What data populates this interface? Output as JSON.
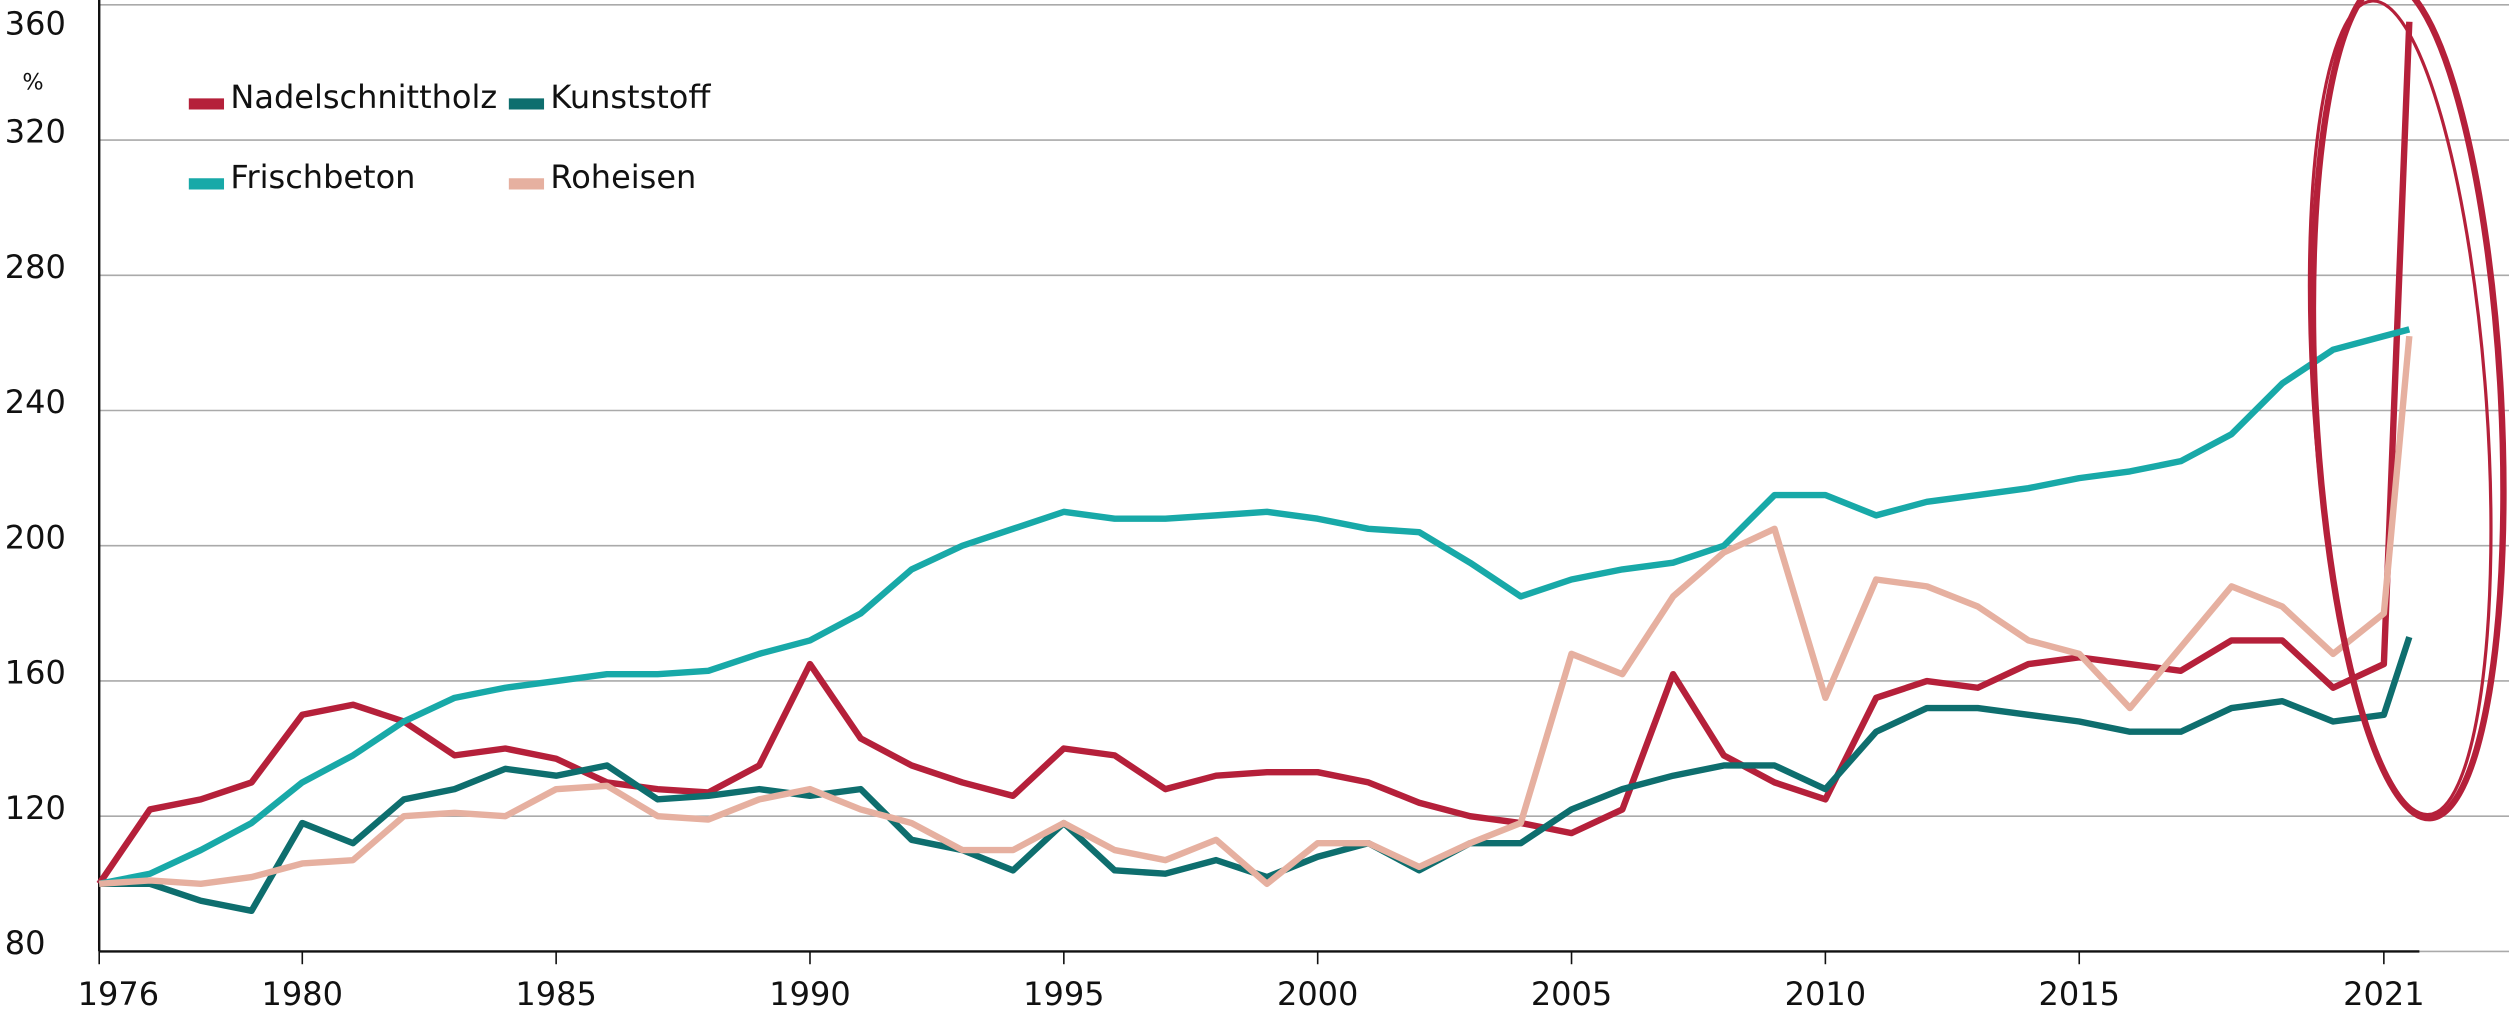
{
  "chart_data": {
    "type": "line",
    "y_unit": "%",
    "x": [
      1976,
      1977,
      1978,
      1979,
      1980,
      1981,
      1982,
      1983,
      1984,
      1985,
      1986,
      1987,
      1988,
      1989,
      1990,
      1991,
      1992,
      1993,
      1994,
      1995,
      1996,
      1997,
      1998,
      1999,
      2000,
      2001,
      2002,
      2003,
      2004,
      2005,
      2006,
      2007,
      2008,
      2009,
      2010,
      2011,
      2012,
      2013,
      2014,
      2015,
      2016,
      2017,
      2018,
      2019,
      2020,
      2021,
      2021.5
    ],
    "series": [
      {
        "name": "Nadelschnittholz",
        "color": "#b5203a",
        "values": [
          100,
          122,
          125,
          130,
          150,
          153,
          148,
          138,
          140,
          137,
          130,
          128,
          127,
          135,
          165,
          143,
          135,
          130,
          126,
          140,
          138,
          128,
          132,
          133,
          133,
          130,
          124,
          120,
          118,
          115,
          122,
          162,
          138,
          130,
          125,
          155,
          160,
          158,
          165,
          167,
          165,
          163,
          172,
          172,
          158,
          165,
          355
        ]
      },
      {
        "name": "Kunststoff",
        "color": "#0e6e6e",
        "values": [
          100,
          100,
          95,
          92,
          118,
          112,
          125,
          128,
          134,
          132,
          135,
          125,
          126,
          128,
          126,
          128,
          113,
          110,
          104,
          118,
          104,
          103,
          107,
          102,
          108,
          112,
          104,
          112,
          112,
          122,
          128,
          132,
          135,
          135,
          128,
          145,
          152,
          152,
          150,
          148,
          145,
          145,
          152,
          154,
          148,
          150,
          173
        ]
      },
      {
        "name": "Frischbeton",
        "color": "#18a9a8",
        "values": [
          100,
          103,
          110,
          118,
          130,
          138,
          148,
          155,
          158,
          160,
          162,
          162,
          163,
          168,
          172,
          180,
          193,
          200,
          205,
          210,
          208,
          208,
          209,
          210,
          208,
          205,
          204,
          195,
          185,
          190,
          193,
          195,
          200,
          215,
          215,
          209,
          213,
          215,
          217,
          220,
          222,
          225,
          233,
          248,
          258,
          262,
          264
        ]
      },
      {
        "name": "Roheisen",
        "color": "#e6b0a0",
        "values": [
          100,
          101,
          100,
          102,
          106,
          107,
          120,
          121,
          120,
          128,
          129,
          120,
          119,
          125,
          128,
          122,
          118,
          110,
          110,
          118,
          110,
          107,
          113,
          100,
          112,
          112,
          105,
          112,
          118,
          168,
          162,
          185,
          198,
          205,
          155,
          190,
          188,
          182,
          172,
          168,
          152,
          170,
          188,
          182,
          168,
          180,
          262
        ]
      }
    ],
    "xlim": [
      1976,
      2021.7
    ],
    "ylim": [
      80,
      360
    ],
    "yticks": [
      80,
      120,
      160,
      200,
      240,
      280,
      320,
      360
    ],
    "xticks": [
      1976,
      1980,
      1985,
      1990,
      1995,
      2000,
      2005,
      2010,
      2015,
      2021
    ],
    "grid": true,
    "legend_position": "top-left"
  }
}
